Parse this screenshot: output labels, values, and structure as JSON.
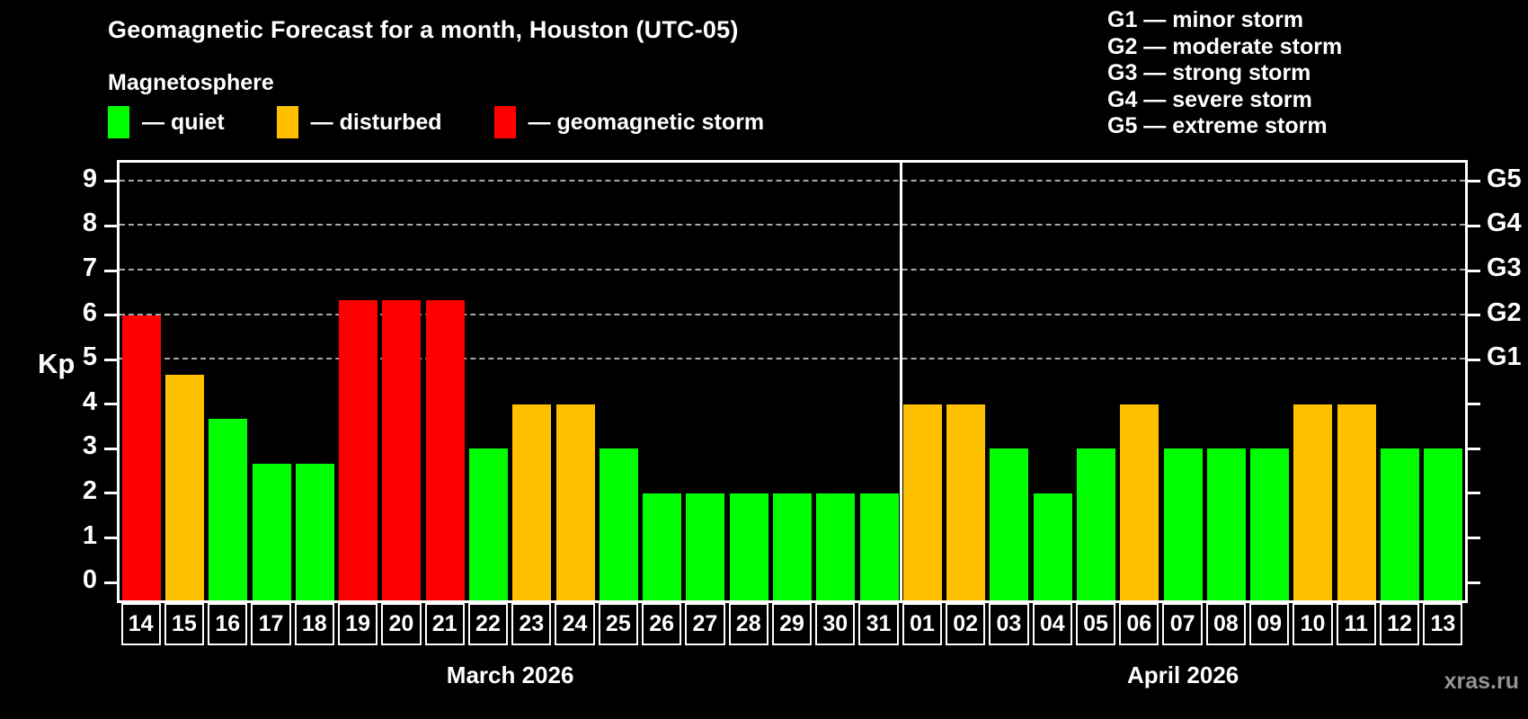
{
  "title": "Geomagnetic Forecast for a month, Houston (UTC-05)",
  "subtitle": "Magnetosphere",
  "watermark": "xras.ru",
  "colors": {
    "background": "#000000",
    "frame": "#ffffff",
    "grid": "#a8a8a8",
    "quiet": "#00ff00",
    "disturbed": "#ffc000",
    "storm": "#ff0000",
    "watermark": "#949494"
  },
  "legend": [
    {
      "status": "quiet",
      "label": "— quiet"
    },
    {
      "status": "disturbed",
      "label": "— disturbed"
    },
    {
      "status": "storm",
      "label": "— geomagnetic storm"
    }
  ],
  "g_legend": [
    {
      "label": "G1 — minor storm"
    },
    {
      "label": "G2 — moderate storm"
    },
    {
      "label": "G3 — strong storm"
    },
    {
      "label": "G4 — severe storm"
    },
    {
      "label": "G5 — extreme storm"
    }
  ],
  "axes": {
    "y_label": "Kp",
    "y_ticks": [
      0,
      1,
      2,
      3,
      4,
      5,
      6,
      7,
      8,
      9
    ],
    "g_scale": [
      {
        "kp": 5,
        "label": "G1"
      },
      {
        "kp": 6,
        "label": "G2"
      },
      {
        "kp": 7,
        "label": "G3"
      },
      {
        "kp": 8,
        "label": "G4"
      },
      {
        "kp": 9,
        "label": "G5"
      }
    ]
  },
  "chart_data": {
    "type": "bar",
    "ylabel": "Kp",
    "ylim": [
      0,
      9
    ],
    "grid_levels": [
      5,
      6,
      7,
      8,
      9
    ],
    "legend_position": "top",
    "months": [
      {
        "label": "March 2026",
        "days": 18
      },
      {
        "label": "April 2026",
        "days": 13
      }
    ],
    "bars": [
      {
        "date": "14",
        "kp": 6.0,
        "status": "storm"
      },
      {
        "date": "15",
        "kp": 4.67,
        "status": "disturbed"
      },
      {
        "date": "16",
        "kp": 3.67,
        "status": "quiet"
      },
      {
        "date": "17",
        "kp": 2.67,
        "status": "quiet"
      },
      {
        "date": "18",
        "kp": 2.67,
        "status": "quiet"
      },
      {
        "date": "19",
        "kp": 6.33,
        "status": "storm"
      },
      {
        "date": "20",
        "kp": 6.33,
        "status": "storm"
      },
      {
        "date": "21",
        "kp": 6.33,
        "status": "storm"
      },
      {
        "date": "22",
        "kp": 3.0,
        "status": "quiet"
      },
      {
        "date": "23",
        "kp": 4.0,
        "status": "disturbed"
      },
      {
        "date": "24",
        "kp": 4.0,
        "status": "disturbed"
      },
      {
        "date": "25",
        "kp": 3.0,
        "status": "quiet"
      },
      {
        "date": "26",
        "kp": 2.0,
        "status": "quiet"
      },
      {
        "date": "27",
        "kp": 2.0,
        "status": "quiet"
      },
      {
        "date": "28",
        "kp": 2.0,
        "status": "quiet"
      },
      {
        "date": "29",
        "kp": 2.0,
        "status": "quiet"
      },
      {
        "date": "30",
        "kp": 2.0,
        "status": "quiet"
      },
      {
        "date": "31",
        "kp": 2.0,
        "status": "quiet"
      },
      {
        "date": "01",
        "kp": 4.0,
        "status": "disturbed"
      },
      {
        "date": "02",
        "kp": 4.0,
        "status": "disturbed"
      },
      {
        "date": "03",
        "kp": 3.0,
        "status": "quiet"
      },
      {
        "date": "04",
        "kp": 2.0,
        "status": "quiet"
      },
      {
        "date": "05",
        "kp": 3.0,
        "status": "quiet"
      },
      {
        "date": "06",
        "kp": 4.0,
        "status": "disturbed"
      },
      {
        "date": "07",
        "kp": 3.0,
        "status": "quiet"
      },
      {
        "date": "08",
        "kp": 3.0,
        "status": "quiet"
      },
      {
        "date": "09",
        "kp": 3.0,
        "status": "quiet"
      },
      {
        "date": "10",
        "kp": 4.0,
        "status": "disturbed"
      },
      {
        "date": "11",
        "kp": 4.0,
        "status": "disturbed"
      },
      {
        "date": "12",
        "kp": 3.0,
        "status": "quiet"
      },
      {
        "date": "13",
        "kp": 3.0,
        "status": "quiet"
      }
    ]
  }
}
